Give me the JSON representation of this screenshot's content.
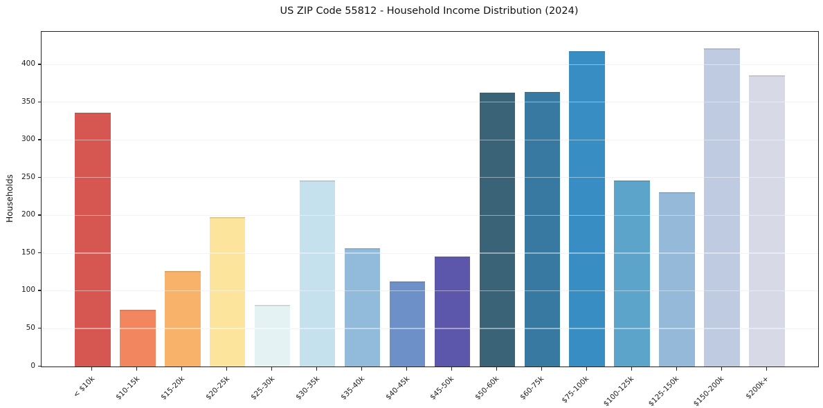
{
  "title": "US ZIP Code 55812 - Household Income Distribution (2024)",
  "chart_data": {
    "type": "bar",
    "title": "US ZIP Code 55812 - Household Income Distribution (2024)",
    "xlabel": "",
    "ylabel": "Households",
    "categories": [
      "< $10k",
      "$10-15k",
      "$15-20k",
      "$20-25k",
      "$25-30k",
      "$30-35k",
      "$35-40k",
      "$40-45k",
      "$45-50k",
      "$50-60k",
      "$60-75k",
      "$75-100k",
      "$100-125k",
      "$125-150k",
      "$150-200k",
      "$200k+"
    ],
    "values": [
      337,
      75,
      127,
      198,
      82,
      247,
      157,
      113,
      146,
      363,
      364,
      418,
      247,
      231,
      422,
      386
    ],
    "bar_colors": [
      "#d65752",
      "#f2875f",
      "#f9b269",
      "#fde49d",
      "#e5f2f4",
      "#c5e1ee",
      "#92bbdb",
      "#6e90c8",
      "#5c57aa",
      "#3b6377",
      "#3779a1",
      "#388dc2",
      "#5ca4ca",
      "#95b9d8",
      "#bfcbe0",
      "#d8d9e7"
    ],
    "ylim": [
      0,
      444
    ],
    "yticks": [
      0,
      50,
      100,
      150,
      200,
      250,
      300,
      350,
      400
    ],
    "grid": true,
    "legend": false
  },
  "style": {
    "spine_color": "#222222",
    "grid_color_back": "#e9e9f0",
    "text_color": "#1a1a1a",
    "background": "#ffffff"
  }
}
